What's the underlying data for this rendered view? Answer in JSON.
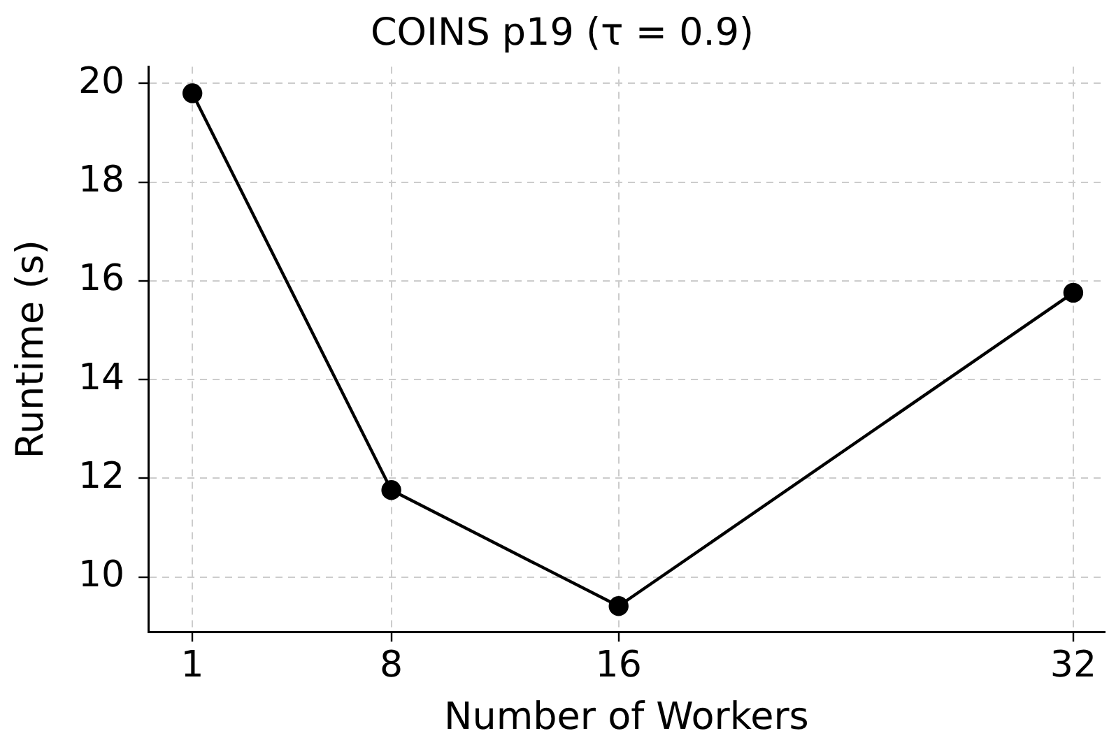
{
  "chart_data": {
    "type": "line",
    "title": "COINS p19 (τ = 0.9)",
    "xlabel": "Number of Workers",
    "ylabel": "Runtime (s)",
    "x": [
      1,
      8,
      16,
      32
    ],
    "series": [
      {
        "color": "#000000",
        "values": [
          19.8,
          11.76,
          9.41,
          15.76
        ]
      }
    ],
    "xlim": [
      -0.55,
      33.1
    ],
    "xticks": [
      1,
      8,
      16,
      32
    ],
    "ylim": [
      8.89,
      20.34
    ],
    "yticks": [
      10,
      12,
      14,
      16,
      18,
      20
    ],
    "grid": true,
    "marker": "circle",
    "line_style": "solid",
    "legend": false
  }
}
